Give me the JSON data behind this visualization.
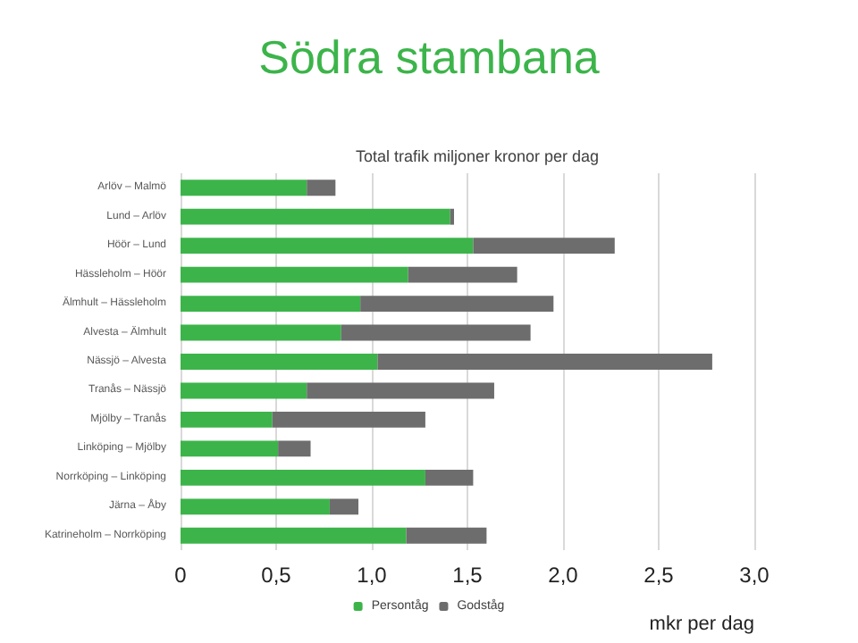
{
  "chart_data": {
    "type": "bar",
    "orientation": "horizontal",
    "stacked": true,
    "title": "Södra stambana",
    "subtitle": "Total trafik miljoner kronor per dag",
    "xlabel": "mkr per dag",
    "categories": [
      "Arlöv – Malmö",
      "Lund – Arlöv",
      "Höör – Lund",
      "Hässleholm – Höör",
      "Älmhult – Hässleholm",
      "Alvesta – Älmhult",
      "Nässjö – Alvesta",
      "Tranås – Nässjö",
      "Mjölby – Tranås",
      "Linköping – Mjölby",
      "Norrköping – Linköping",
      "Järna – Åby",
      "Katrineholm – Norrköping"
    ],
    "series": [
      {
        "name": "Persontåg",
        "color": "#3cb44a",
        "values": [
          0.66,
          1.41,
          1.53,
          1.19,
          0.94,
          0.84,
          1.03,
          0.66,
          0.48,
          0.51,
          1.28,
          0.78,
          1.18
        ]
      },
      {
        "name": "Godståg",
        "color": "#6d6d6d",
        "values": [
          0.15,
          0.02,
          0.74,
          0.57,
          1.01,
          0.99,
          1.75,
          0.98,
          0.8,
          0.17,
          0.25,
          0.15,
          0.42
        ]
      }
    ],
    "xlim": [
      0,
      3
    ],
    "xticks": [
      0,
      {
        "value": 0.5,
        "label": "0,5"
      },
      {
        "value": 1,
        "label": "1,0"
      },
      {
        "value": 1.5,
        "label": "1,5"
      },
      {
        "value": 2,
        "label": "2,0"
      },
      {
        "value": 2.5,
        "label": "2,5"
      },
      {
        "value": 3,
        "label": "3,0"
      }
    ],
    "grid": "x",
    "legend": "bottom"
  }
}
